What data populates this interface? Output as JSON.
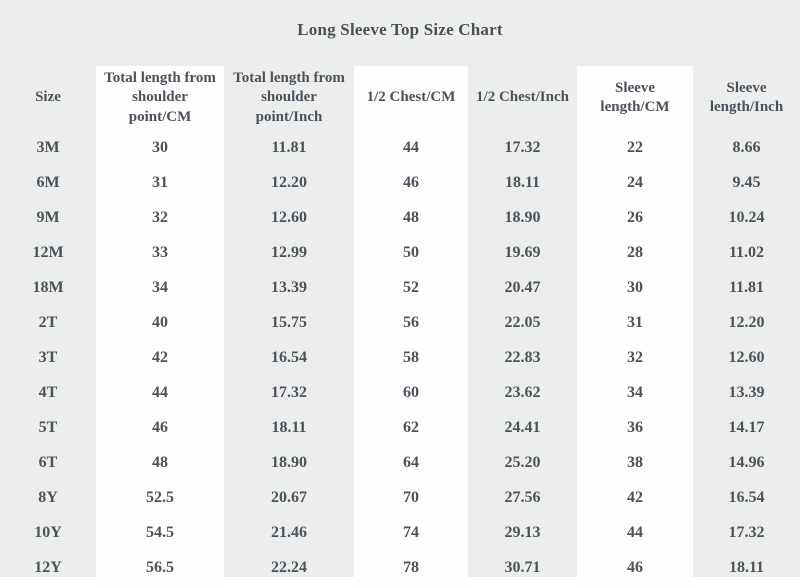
{
  "title": "Long Sleeve Top Size Chart",
  "colors": {
    "panel_bg": "#eceeee",
    "highlight_column_bg": "#fdfdfd",
    "text": "#4f515a"
  },
  "chart_data": {
    "type": "table",
    "title": "Long Sleeve Top Size Chart",
    "columns": [
      "Size",
      "Total length from\nshoulder\npoint/CM",
      "Total length from\nshoulder\npoint/Inch",
      "1/2 Chest/CM",
      "1/2 Chest/Inch",
      "Sleeve\nlength/CM",
      "Sleeve\nlength/Inch"
    ],
    "highlighted_columns": [
      "Total length from shoulder point/CM",
      "1/2 Chest/CM",
      "Sleeve length/CM"
    ],
    "rows": [
      [
        "3M",
        "30",
        "11.81",
        "44",
        "17.32",
        "22",
        "8.66"
      ],
      [
        "6M",
        "31",
        "12.20",
        "46",
        "18.11",
        "24",
        "9.45"
      ],
      [
        "9M",
        "32",
        "12.60",
        "48",
        "18.90",
        "26",
        "10.24"
      ],
      [
        "12M",
        "33",
        "12.99",
        "50",
        "19.69",
        "28",
        "11.02"
      ],
      [
        "18M",
        "34",
        "13.39",
        "52",
        "20.47",
        "30",
        "11.81"
      ],
      [
        "2T",
        "40",
        "15.75",
        "56",
        "22.05",
        "31",
        "12.20"
      ],
      [
        "3T",
        "42",
        "16.54",
        "58",
        "22.83",
        "32",
        "12.60"
      ],
      [
        "4T",
        "44",
        "17.32",
        "60",
        "23.62",
        "34",
        "13.39"
      ],
      [
        "5T",
        "46",
        "18.11",
        "62",
        "24.41",
        "36",
        "14.17"
      ],
      [
        "6T",
        "48",
        "18.90",
        "64",
        "25.20",
        "38",
        "14.96"
      ],
      [
        "8Y",
        "52.5",
        "20.67",
        "70",
        "27.56",
        "42",
        "16.54"
      ],
      [
        "10Y",
        "54.5",
        "21.46",
        "74",
        "29.13",
        "44",
        "17.32"
      ],
      [
        "12Y",
        "56.5",
        "22.24",
        "78",
        "30.71",
        "46",
        "18.11"
      ]
    ]
  }
}
